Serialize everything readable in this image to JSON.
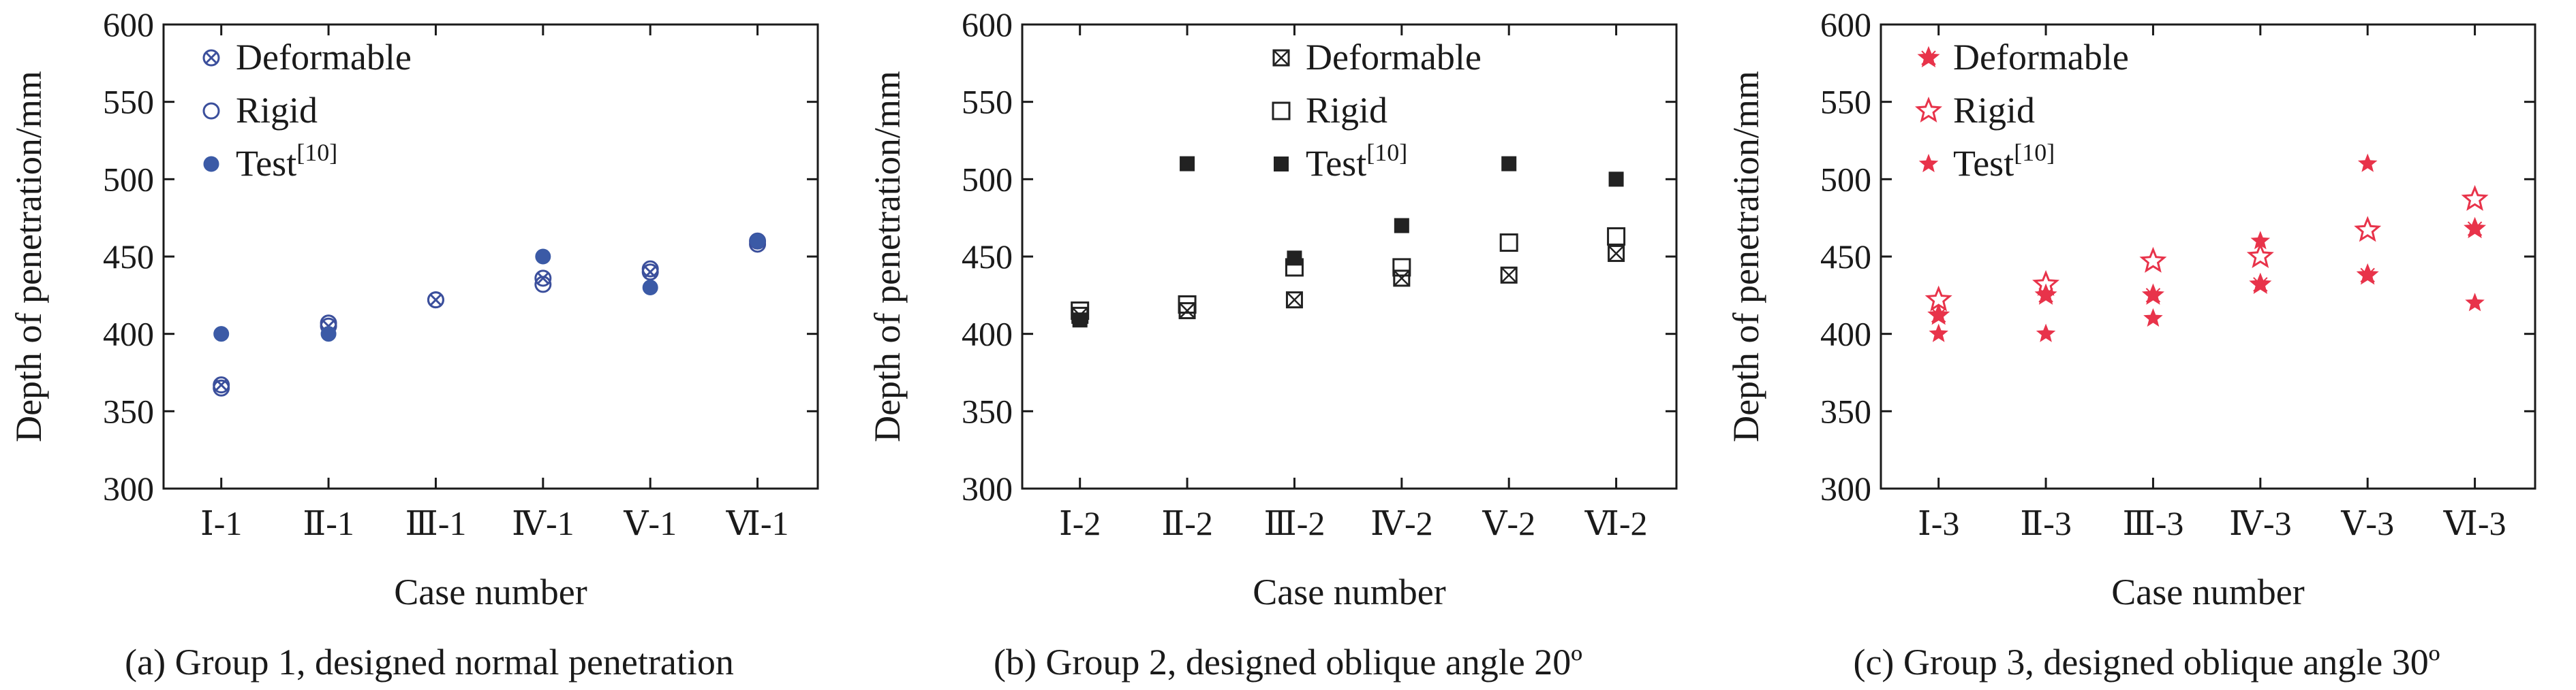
{
  "chart_data": [
    {
      "type": "scatter",
      "caption": "(a) Group 1, designed normal penetration",
      "xlabel": "Case number",
      "ylabel": "Depth of penetration/mm",
      "ylim": [
        300,
        600
      ],
      "yticks": [
        300,
        350,
        400,
        450,
        500,
        550,
        600
      ],
      "categories": [
        "Ⅰ-1",
        "Ⅱ-1",
        "Ⅲ-1",
        "Ⅳ-1",
        "Ⅴ-1",
        "Ⅵ-1"
      ],
      "legend_position": "top-left",
      "series": [
        {
          "name": "Deformable",
          "marker": "circle-x",
          "color": "#3b4f9c",
          "values": [
            367,
            405,
            422,
            436,
            440,
            460
          ]
        },
        {
          "name": "Rigid",
          "marker": "circle-open",
          "color": "#3b4f9c",
          "values": [
            365,
            407,
            422,
            432,
            442,
            458
          ]
        },
        {
          "name": "Test",
          "ref": "[10]",
          "marker": "circle-filled",
          "color": "#3b5aa6",
          "values": [
            400,
            400,
            null,
            450,
            430,
            460
          ]
        }
      ]
    },
    {
      "type": "scatter",
      "caption": "(b) Group 2, designed oblique angle 20º",
      "xlabel": "Case number",
      "ylabel": "Depth of penetration/mm",
      "ylim": [
        300,
        600
      ],
      "yticks": [
        300,
        350,
        400,
        450,
        500,
        550,
        600
      ],
      "categories": [
        "Ⅰ-2",
        "Ⅱ-2",
        "Ⅲ-2",
        "Ⅳ-2",
        "Ⅴ-2",
        "Ⅵ-2"
      ],
      "legend_position": "top-right",
      "series": [
        {
          "name": "Deformable",
          "marker": "square-x",
          "color": "#222222",
          "values": [
            412,
            415,
            422,
            436,
            438,
            452
          ]
        },
        {
          "name": "Rigid",
          "marker": "square-open",
          "color": "#222222",
          "values": [
            415,
            419,
            443,
            443,
            459,
            463
          ]
        },
        {
          "name": "Test",
          "ref": "[10]",
          "marker": "square-filled",
          "color": "#222222",
          "values": [
            409,
            510,
            449,
            470,
            510,
            500
          ]
        }
      ]
    },
    {
      "type": "scatter",
      "caption": "(c) Group 3, designed oblique angle 30º",
      "xlabel": "Case number",
      "ylabel": "Depth of penetration/mm",
      "ylim": [
        300,
        600
      ],
      "yticks": [
        300,
        350,
        400,
        450,
        500,
        550,
        600
      ],
      "categories": [
        "Ⅰ-3",
        "Ⅱ-3",
        "Ⅲ-3",
        "Ⅳ-3",
        "Ⅴ-3",
        "Ⅵ-3"
      ],
      "legend_position": "top-left",
      "series": [
        {
          "name": "Deformable",
          "marker": "star-x",
          "color": "#e8334a",
          "values": [
            412,
            425,
            425,
            432,
            438,
            468
          ]
        },
        {
          "name": "Rigid",
          "marker": "star-open",
          "color": "#e8334a",
          "values": [
            422,
            432,
            447,
            450,
            467,
            487
          ]
        },
        {
          "name": "Test",
          "ref": "[10]",
          "marker": "star-filled",
          "color": "#e8334a",
          "values": [
            400,
            400,
            410,
            460,
            510,
            420
          ]
        }
      ]
    }
  ]
}
